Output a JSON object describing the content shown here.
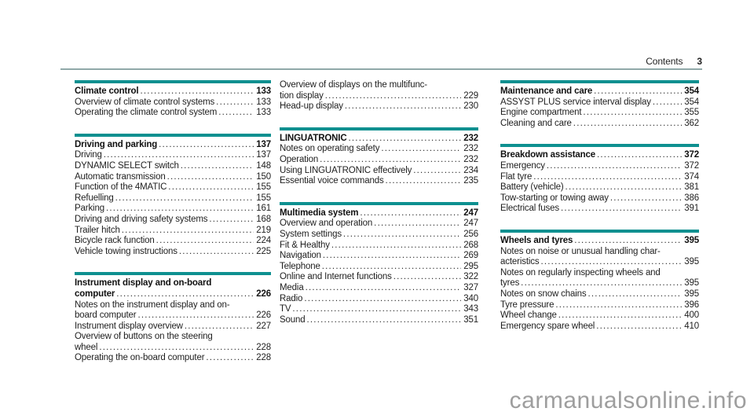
{
  "header": {
    "label": "Contents",
    "page": "3"
  },
  "watermark": "carmanualsonline.info",
  "colors": {
    "accent": "#0e9090",
    "rule": "#90a8a8",
    "watermark": "#9e9e9e"
  },
  "columns": [
    {
      "sections": [
        {
          "bar": true,
          "entries": [
            {
              "lines": [
                "Climate control"
              ],
              "page": "133",
              "bold": true
            },
            {
              "lines": [
                "Overview of climate control systems"
              ],
              "page": "133"
            },
            {
              "lines": [
                "Operating the climate control system"
              ],
              "page": "133"
            }
          ]
        },
        {
          "bar": true,
          "entries": [
            {
              "lines": [
                "Driving and parking"
              ],
              "page": "137",
              "bold": true
            },
            {
              "lines": [
                "Driving"
              ],
              "page": "137"
            },
            {
              "lines": [
                "DYNAMIC SELECT switch"
              ],
              "page": "148"
            },
            {
              "lines": [
                "Automatic transmission"
              ],
              "page": "150"
            },
            {
              "lines": [
                "Function of the 4MATIC"
              ],
              "page": "155"
            },
            {
              "lines": [
                "Refuelling"
              ],
              "page": "155"
            },
            {
              "lines": [
                "Parking"
              ],
              "page": "161"
            },
            {
              "lines": [
                "Driving and driving safety systems"
              ],
              "page": "168"
            },
            {
              "lines": [
                "Trailer hitch"
              ],
              "page": "219"
            },
            {
              "lines": [
                "Bicycle rack function"
              ],
              "page": "224"
            },
            {
              "lines": [
                "Vehicle towing instructions"
              ],
              "page": "225"
            }
          ]
        },
        {
          "bar": true,
          "entries": [
            {
              "lines": [
                "Instrument display and on-board",
                "computer"
              ],
              "page": "226",
              "bold": true
            },
            {
              "lines": [
                "Notes on the instrument display and on-",
                "board computer"
              ],
              "page": "226"
            },
            {
              "lines": [
                "Instrument display overview"
              ],
              "page": "227"
            },
            {
              "lines": [
                "Overview of buttons on the steering",
                "wheel"
              ],
              "page": "228"
            },
            {
              "lines": [
                "Operating the on-board computer"
              ],
              "page": "228"
            }
          ]
        }
      ]
    },
    {
      "sections": [
        {
          "bar": false,
          "entries": [
            {
              "lines": [
                "Overview of displays on the multifunc-",
                "tion display"
              ],
              "page": "229"
            },
            {
              "lines": [
                "Head-up display"
              ],
              "page": "230"
            }
          ]
        },
        {
          "bar": true,
          "entries": [
            {
              "lines": [
                "LINGUATRONIC"
              ],
              "page": "232",
              "bold": true
            },
            {
              "lines": [
                "Notes on operating safety"
              ],
              "page": "232"
            },
            {
              "lines": [
                "Operation"
              ],
              "page": "232"
            },
            {
              "lines": [
                "Using LINGUATRONIC effectively"
              ],
              "page": "234"
            },
            {
              "lines": [
                "Essential voice commands"
              ],
              "page": "235"
            }
          ]
        },
        {
          "bar": true,
          "entries": [
            {
              "lines": [
                "Multimedia system"
              ],
              "page": "247",
              "bold": true
            },
            {
              "lines": [
                "Overview and operation"
              ],
              "page": "247"
            },
            {
              "lines": [
                "System settings"
              ],
              "page": "256"
            },
            {
              "lines": [
                "Fit & Healthy"
              ],
              "page": "268"
            },
            {
              "lines": [
                "Navigation"
              ],
              "page": "269"
            },
            {
              "lines": [
                "Telephone"
              ],
              "page": "295"
            },
            {
              "lines": [
                "Online and Internet functions"
              ],
              "page": "322"
            },
            {
              "lines": [
                "Media"
              ],
              "page": "327"
            },
            {
              "lines": [
                "Radio"
              ],
              "page": "340"
            },
            {
              "lines": [
                "TV"
              ],
              "page": "343"
            },
            {
              "lines": [
                "Sound"
              ],
              "page": "351"
            }
          ]
        }
      ]
    },
    {
      "sections": [
        {
          "bar": true,
          "entries": [
            {
              "lines": [
                "Maintenance and care"
              ],
              "page": "354",
              "bold": true
            },
            {
              "lines": [
                "ASSYST PLUS service interval display"
              ],
              "page": "354"
            },
            {
              "lines": [
                "Engine compartment"
              ],
              "page": "355"
            },
            {
              "lines": [
                "Cleaning and care"
              ],
              "page": "362"
            }
          ]
        },
        {
          "bar": true,
          "entries": [
            {
              "lines": [
                "Breakdown assistance"
              ],
              "page": "372",
              "bold": true
            },
            {
              "lines": [
                "Emergency"
              ],
              "page": "372"
            },
            {
              "lines": [
                "Flat tyre"
              ],
              "page": "374"
            },
            {
              "lines": [
                "Battery (vehicle)"
              ],
              "page": "381"
            },
            {
              "lines": [
                "Tow-starting or towing away"
              ],
              "page": "386"
            },
            {
              "lines": [
                "Electrical fuses"
              ],
              "page": "391"
            }
          ]
        },
        {
          "bar": true,
          "entries": [
            {
              "lines": [
                "Wheels and tyres"
              ],
              "page": "395",
              "bold": true
            },
            {
              "lines": [
                "Notes on noise or unusual handling char-",
                "acteristics"
              ],
              "page": "395"
            },
            {
              "lines": [
                "Notes on regularly inspecting wheels and",
                "tyres"
              ],
              "page": "395"
            },
            {
              "lines": [
                "Notes on snow chains"
              ],
              "page": "395"
            },
            {
              "lines": [
                "Tyre pressure"
              ],
              "page": "396"
            },
            {
              "lines": [
                "Wheel change"
              ],
              "page": "400"
            },
            {
              "lines": [
                "Emergency spare wheel"
              ],
              "page": "410"
            }
          ]
        }
      ]
    }
  ]
}
